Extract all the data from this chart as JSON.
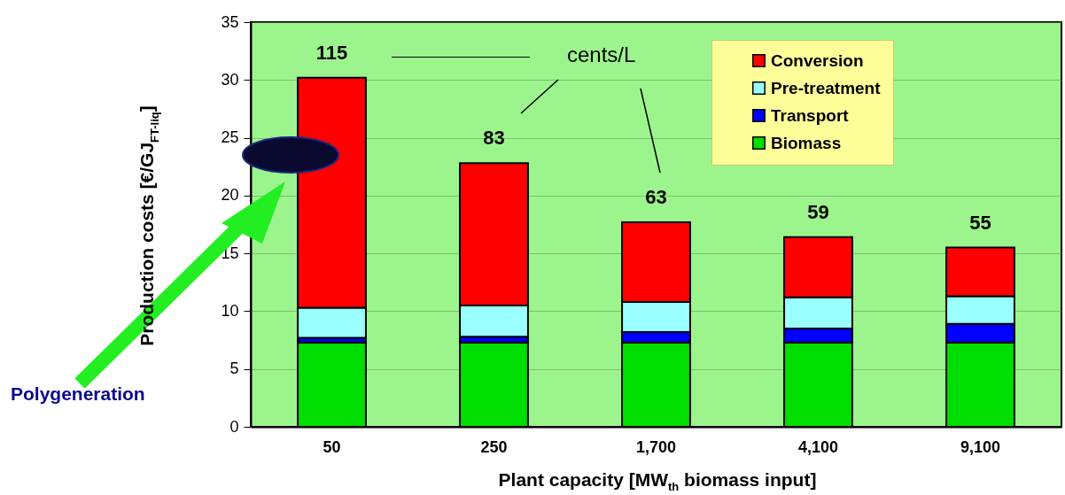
{
  "chart_data": {
    "type": "bar",
    "stacked": true,
    "xlabel": "Plant capacity  [MW$_{th}$ biomass input]",
    "ylabel": "Production costs  [€/GJ$_{FT-liq}$]",
    "categories": [
      "50",
      "250",
      "1,700",
      "4,100",
      "9,100"
    ],
    "series": [
      {
        "name": "Biomass",
        "color": "#00dd00",
        "values": [
          7.3,
          7.3,
          7.3,
          7.3,
          7.3
        ]
      },
      {
        "name": "Transport",
        "color": "#0000ff",
        "values": [
          0.4,
          0.5,
          0.9,
          1.2,
          1.6
        ]
      },
      {
        "name": "Pre-treatment",
        "color": "#99ffff",
        "values": [
          2.6,
          2.7,
          2.6,
          2.7,
          2.4
        ]
      },
      {
        "name": "Conversion",
        "color": "#ff0000",
        "values": [
          19.9,
          12.3,
          6.9,
          5.2,
          4.2
        ]
      }
    ],
    "annotations": [
      "cents/L",
      "Polygeneration",
      {
        "text": "115",
        "x": "50",
        "y": 30.2
      },
      {
        "text": "83",
        "x": "250",
        "y": 22.8
      },
      {
        "text": "63",
        "x": "1,700",
        "y": 17.7
      },
      {
        "text": "59",
        "x": "4,100",
        "y": 16.4
      },
      {
        "text": "55",
        "x": "9,100",
        "y": 15.5
      }
    ],
    "ylim": [
      0,
      35
    ],
    "yticks": [
      0,
      5,
      10,
      15,
      20,
      25,
      30,
      35
    ],
    "grid": "y",
    "legend": "top right"
  }
}
